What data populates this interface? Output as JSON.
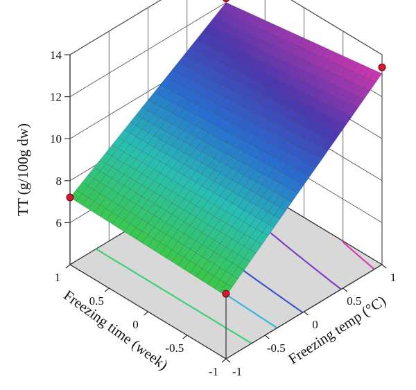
{
  "chart_data": {
    "type": "surface3d",
    "zlabel": "TT (g/100g dw)",
    "xlabel": "Freezing time (week)",
    "ylabel": "Freezing temp (°C)",
    "zlim": [
      4,
      14
    ],
    "z_ticks": [
      "6",
      "8",
      "10",
      "12",
      "14"
    ],
    "x_ticks": [
      "1",
      "0.5",
      "0",
      "-0.5",
      "-1"
    ],
    "y_ticks": [
      "-1",
      "-0.5",
      "0",
      "0.5",
      "1"
    ],
    "x_tick_values": [
      1,
      0.5,
      0,
      -0.5,
      -1
    ],
    "y_tick_values": [
      -1,
      -0.5,
      0,
      0.5,
      1
    ],
    "z_tick_values": [
      6,
      8,
      10,
      12,
      14
    ],
    "surface_corners": [
      {
        "time": 1,
        "temp": -1,
        "tt": 7.2
      },
      {
        "time": 1,
        "temp": 1,
        "tt": 12.0
      },
      {
        "time": -1,
        "temp": -1,
        "tt": 7.0
      },
      {
        "time": -1,
        "temp": 1,
        "tt": 13.1
      }
    ],
    "design_points": [
      {
        "time": 1,
        "temp": -1,
        "tt": 7.2
      },
      {
        "time": 1,
        "temp": 1,
        "tt": 12.2
      },
      {
        "time": -1,
        "temp": -1,
        "tt": 7.1
      },
      {
        "time": -1,
        "temp": 1,
        "tt": 13.4
      }
    ],
    "contour_levels": [
      {
        "level": 8,
        "color": "#3fd07a"
      },
      {
        "level": 9,
        "color": "#33b6e0"
      },
      {
        "level": 10,
        "color": "#3e55c8"
      },
      {
        "level": 11.5,
        "color": "#7b3fc4"
      },
      {
        "level": 12.8,
        "color": "#d13fb0"
      }
    ],
    "grid": true
  }
}
